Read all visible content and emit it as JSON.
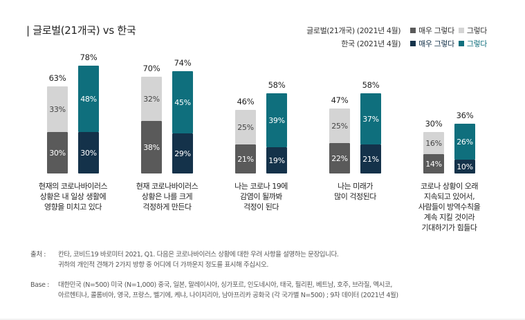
{
  "title": "| 글로벌(21개국) vs 한국",
  "legend": {
    "global_label": "글로벌(21개국) (2021년 4월)",
    "korea_label": "한국 (2021년 4월)",
    "strong": "매우 그렇다",
    "agree": "그렇다"
  },
  "colors": {
    "global_strong": "#5a5a5a",
    "global_agree": "#d4d4d4",
    "korea_strong": "#14324a",
    "korea_agree": "#0f6f7d"
  },
  "chart_data": {
    "type": "bar",
    "stacked": true,
    "categories": [
      [
        "현재의 코로나바이러스",
        "상황은 내 일상 생활에",
        "영향을 미치고 있다"
      ],
      [
        "현재 코로나바이러스",
        "상황은 나를 크게",
        "걱정하게 만든다"
      ],
      [
        "나는 코로나 19에",
        "감염이 될까봐",
        "걱정이 된다"
      ],
      [
        "나는 미래가",
        "많이 걱정된다"
      ],
      [
        "코로나 상황이 오래",
        "지속되고 있어서,",
        "사람들이 방역수칙을",
        "계속 지킬 것이라",
        "기대하기가 힘들다"
      ]
    ],
    "series": [
      {
        "group": "글로벌(21개국) (2021년 4월)",
        "name": "매우 그렇다",
        "values": [
          30,
          38,
          21,
          22,
          14
        ]
      },
      {
        "group": "글로벌(21개국) (2021년 4월)",
        "name": "그렇다",
        "values": [
          33,
          32,
          25,
          25,
          16
        ]
      },
      {
        "group": "한국 (2021년 4월)",
        "name": "매우 그렇다",
        "values": [
          30,
          29,
          19,
          21,
          10
        ]
      },
      {
        "group": "한국 (2021년 4월)",
        "name": "그렇다",
        "values": [
          48,
          45,
          39,
          37,
          26
        ]
      }
    ],
    "totals": {
      "global": [
        63,
        70,
        46,
        47,
        30
      ],
      "korea": [
        78,
        74,
        58,
        58,
        36
      ]
    },
    "unit": "%",
    "legend_position": "top-right",
    "grid": false
  },
  "notes": {
    "source_key": "출처 :",
    "source_lines": [
      "칸타, 코비드19 바로미터 2021, Q1. 다음은 코로나바이러스 상황에 대한 우려 사항을 설명하는 문장입니다.",
      "귀하의 개인적 견해가 2가지 방향 중 어디에 더 가까운지 정도를 표시해 주십시오."
    ],
    "base_key": "Base :",
    "base_lines": [
      "대한민국 (N=500) 미국 (N=1,000) 중국, 일본, 말레이시아, 싱가포르, 인도네시아, 태국, 필리핀, 베트남, 호주, 브라질, 멕시코,",
      "아르헨티나, 콜롬비아, 영국, 프랑스, 벨기에, 케냐, 나이지리아, 남아프리카 공화국 (각 국가별  N=500) ; 9차 데이터 (2021년 4월)"
    ]
  }
}
